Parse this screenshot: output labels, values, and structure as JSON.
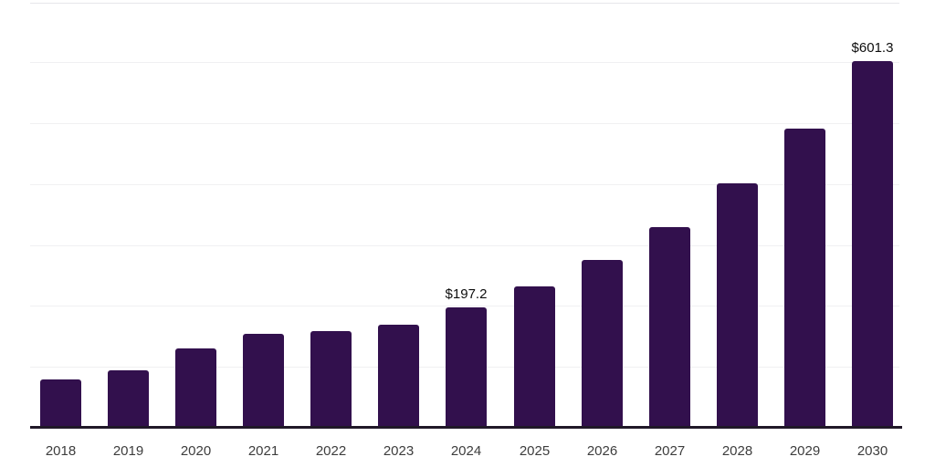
{
  "chart_data": {
    "type": "bar",
    "title": "",
    "xlabel": "",
    "ylabel": "",
    "categories": [
      "2018",
      "2019",
      "2020",
      "2021",
      "2022",
      "2023",
      "2024",
      "2025",
      "2026",
      "2027",
      "2028",
      "2029",
      "2030"
    ],
    "values": [
      79.5,
      94.5,
      130.5,
      154.5,
      159.0,
      169.5,
      197.2,
      232.5,
      276.0,
      330.0,
      400.5,
      490.5,
      601.3
    ],
    "value_labels": [
      {
        "category": "2024",
        "text": "$197.2"
      },
      {
        "category": "2030",
        "text": "$601.3"
      }
    ],
    "ylim": [
      0,
      650
    ],
    "gridline_values": [
      100,
      200,
      300,
      400,
      500,
      600
    ],
    "grid": "horizontal-only",
    "legend": "none",
    "y_axis_ticks": "hidden",
    "bar_color": "#32104d",
    "axis_line_color": "#201828",
    "gridline_color": "#f0f0f2",
    "top_border_color": "#e7e7ea",
    "value_label_color": "#0d0d0d",
    "tick_label_color": "#3d3d3d",
    "background_color": "#ffffff"
  }
}
